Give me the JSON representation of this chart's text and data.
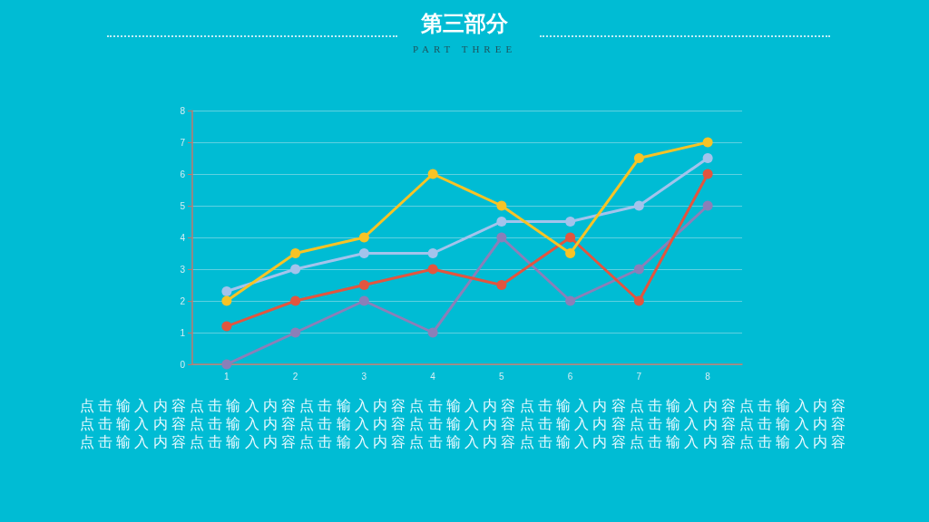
{
  "chart_data": {
    "type": "line",
    "title": "第三部分",
    "subtitle": "PART THREE",
    "categories": [
      "1",
      "2",
      "3",
      "4",
      "5",
      "6",
      "7",
      "8"
    ],
    "series": [
      {
        "color": "#8b7fb8",
        "values": [
          0,
          1,
          2,
          1,
          4,
          2,
          3,
          5
        ]
      },
      {
        "color": "#e2553f",
        "values": [
          1.2,
          2,
          2.5,
          3,
          2.5,
          4,
          2,
          6
        ]
      },
      {
        "color": "#a3c3ec",
        "values": [
          2.3,
          3,
          3.5,
          3.5,
          4.5,
          4.5,
          5,
          6.5
        ]
      },
      {
        "color": "#f7c325",
        "values": [
          2,
          3.5,
          4,
          6,
          5,
          3.5,
          6.5,
          7
        ]
      }
    ],
    "ylim": [
      0,
      8
    ],
    "yticks": [
      0,
      1,
      2,
      3,
      4,
      5,
      6,
      7,
      8
    ],
    "grid": "y",
    "marker": "circle",
    "line_style": "solid",
    "annotations": [
      "点击输入内容点击输入内容点击输入内容点击输入内容点击输入内容点击输入内容点击输入内容",
      "点击输入内容点击输入内容点击输入内容点击输入内容点击输入内容点击输入内容点击输入内容",
      "点击输入内容点击输入内容点击输入内容点击输入内容点击输入内容点击输入内容点击输入内容"
    ]
  }
}
